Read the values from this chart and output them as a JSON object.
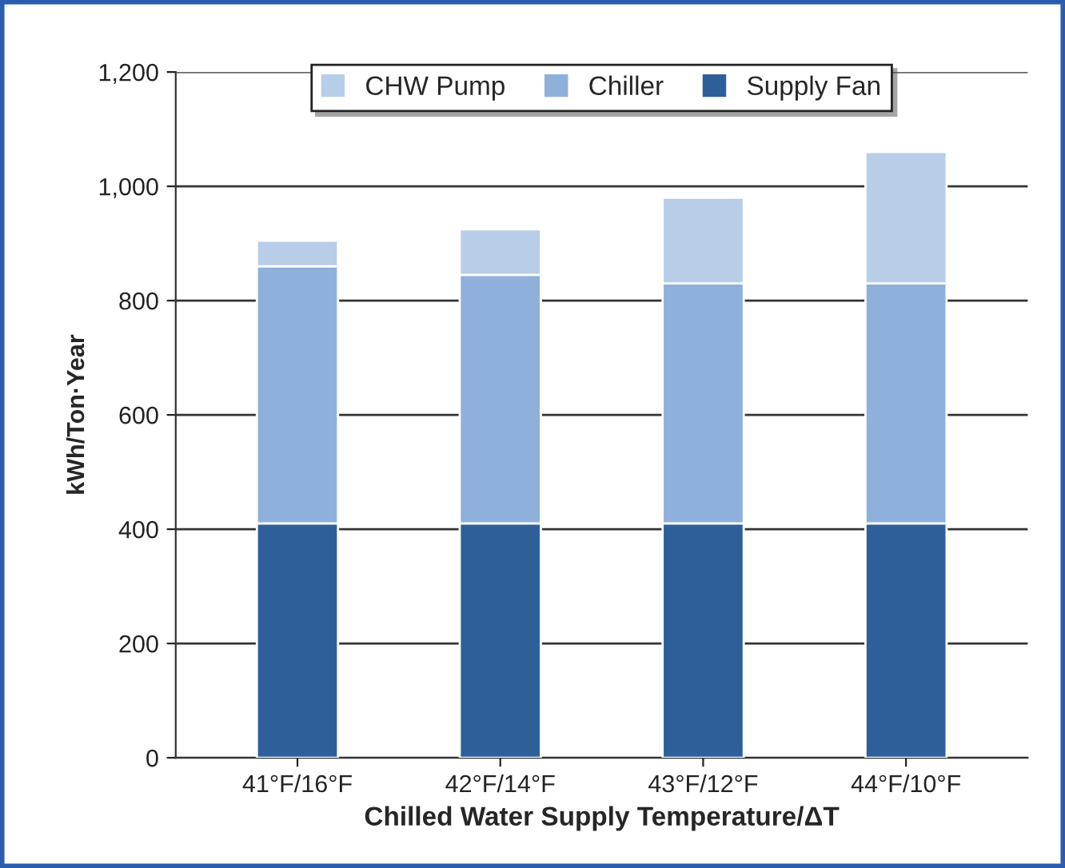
{
  "chart_data": {
    "type": "bar",
    "stacked": true,
    "xlabel": "Chilled Water Supply Temperature/ΔT",
    "ylabel": "kWh/Ton·Year",
    "categories": [
      "41°F/16°F",
      "42°F/14°F",
      "43°F/12°F",
      "44°F/10°F"
    ],
    "series": [
      {
        "name": "Supply Fan",
        "color": "#2f5f98",
        "values": [
          410,
          410,
          410,
          410
        ]
      },
      {
        "name": "Chiller",
        "color": "#8fb0da",
        "values": [
          450,
          435,
          420,
          420
        ]
      },
      {
        "name": "CHW Pump",
        "color": "#b8cde8",
        "values": [
          45,
          80,
          150,
          230
        ]
      }
    ],
    "ylim": [
      0,
      1200
    ],
    "yticks": [
      {
        "value": 0,
        "label": "0"
      },
      {
        "value": 200,
        "label": "200"
      },
      {
        "value": 400,
        "label": "400"
      },
      {
        "value": 600,
        "label": "600"
      },
      {
        "value": 800,
        "label": "800"
      },
      {
        "value": 1000,
        "label": "1,000"
      },
      {
        "value": 1200,
        "label": "1,200"
      }
    ],
    "grid": "y",
    "legend": "top"
  }
}
